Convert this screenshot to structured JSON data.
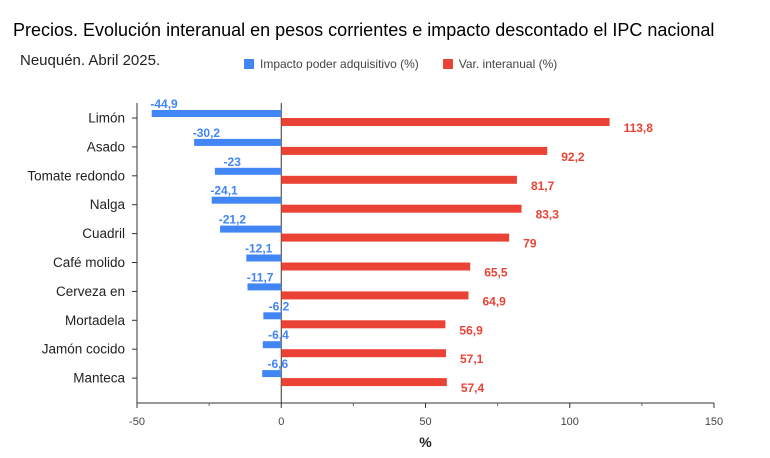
{
  "header": {
    "title": "Precios. Evolución interanual en pesos corrientes e impacto descontado el IPC nacional",
    "subtitle": "Neuquén. Abril 2025."
  },
  "chart_data": {
    "type": "bar",
    "orientation": "horizontal",
    "categories": [
      "Limón",
      "Asado",
      "Tomate redondo",
      "Nalga",
      "Cuadril",
      "Café molido",
      "Cerveza en",
      "Mortadela",
      "Jamón cocido",
      "Manteca"
    ],
    "series": [
      {
        "name": "Impacto poder adquisitivo (%)",
        "color": "#4285f4",
        "values": [
          -44.9,
          -30.2,
          -23,
          -24.1,
          -21.2,
          -12.1,
          -11.7,
          -6.2,
          -6.4,
          -6.6
        ],
        "labels": [
          "-44,9",
          "-30,2",
          "-23",
          "-24,1",
          "-21,2",
          "-12,1",
          "-11,7",
          "-6,2",
          "-6,4",
          "-6,6"
        ]
      },
      {
        "name": "Var. interanual (%)",
        "color": "#ea4335",
        "values": [
          113.8,
          92.2,
          81.7,
          83.3,
          79,
          65.5,
          64.9,
          56.9,
          57.1,
          57.4
        ],
        "labels": [
          "113,8",
          "92,2",
          "81,7",
          "83,3",
          "79",
          "65,5",
          "64,9",
          "56,9",
          "57,1",
          "57,4"
        ]
      }
    ],
    "xlabel": "%",
    "xlim": [
      -50,
      150
    ],
    "xticks": [
      -50,
      0,
      50,
      100,
      150
    ],
    "xtick_labels": [
      "-50",
      "0",
      "50",
      "100",
      "150"
    ],
    "legend_position": "top",
    "grid": false
  }
}
